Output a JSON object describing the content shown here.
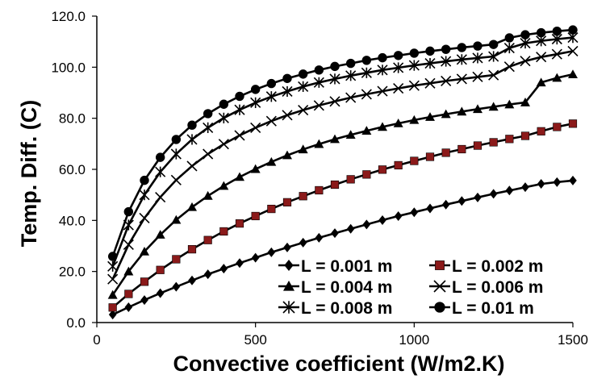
{
  "chart_data": {
    "type": "line",
    "title": "",
    "xlabel": "Convective coefficient (W/m2.K)",
    "ylabel": "Temp. Diff. (C)",
    "xlim": [
      0,
      1500
    ],
    "ylim": [
      0,
      120
    ],
    "xticks": [
      0,
      500,
      1000,
      1500
    ],
    "xtick_labels": [
      "0",
      "500",
      "1000",
      "1500"
    ],
    "yticks": [
      0,
      20,
      40,
      60,
      80,
      100,
      120
    ],
    "ytick_labels": [
      "0.0",
      "20.0",
      "40.0",
      "60.0",
      "80.0",
      "100.0",
      "120.0"
    ],
    "grid": false,
    "legend_position": "bottom-right",
    "x": [
      50,
      100,
      150,
      200,
      250,
      300,
      350,
      400,
      450,
      500,
      550,
      600,
      650,
      700,
      750,
      800,
      850,
      900,
      950,
      1000,
      1050,
      1100,
      1150,
      1200,
      1250,
      1300,
      1350,
      1400,
      1450,
      1500
    ],
    "series": [
      {
        "name": "L = 0.001 m",
        "marker": "diamond",
        "marker_color": "#000000",
        "values": [
          3.1,
          6.0,
          8.8,
          11.5,
          14.0,
          16.5,
          18.9,
          21.1,
          23.3,
          25.4,
          27.5,
          29.4,
          31.3,
          33.2,
          35.0,
          36.7,
          38.4,
          40.1,
          41.7,
          43.2,
          44.7,
          46.2,
          47.6,
          49.0,
          50.4,
          51.7,
          53.0,
          54.3,
          55.0,
          55.6
        ]
      },
      {
        "name": "L = 0.002 m",
        "marker": "square",
        "marker_color": "#8b1a1a",
        "values": [
          5.9,
          11.2,
          16.0,
          20.6,
          24.8,
          28.7,
          32.3,
          35.7,
          38.8,
          41.7,
          44.5,
          47.1,
          49.5,
          51.8,
          54.0,
          56.1,
          58.0,
          59.9,
          61.6,
          63.3,
          64.9,
          66.5,
          67.9,
          69.3,
          70.6,
          71.9,
          73.1,
          74.9,
          76.6,
          77.9
        ]
      },
      {
        "name": "L = 0.004 m",
        "marker": "triangle",
        "marker_color": "#000000",
        "values": [
          10.8,
          20.0,
          27.8,
          34.4,
          40.2,
          45.2,
          49.6,
          53.5,
          57.0,
          60.1,
          62.9,
          65.5,
          67.8,
          69.9,
          71.8,
          73.5,
          75.1,
          76.6,
          78.0,
          79.3,
          80.5,
          81.6,
          82.6,
          83.6,
          84.5,
          85.4,
          86.2,
          94.0,
          95.8,
          97.2
        ]
      },
      {
        "name": "L = 0.006 m",
        "marker": "x",
        "marker_color": "#000000",
        "values": [
          17.0,
          30.5,
          40.9,
          49.1,
          55.8,
          61.3,
          66.0,
          69.9,
          73.3,
          76.3,
          78.9,
          81.2,
          83.2,
          85.0,
          86.6,
          88.1,
          89.4,
          90.6,
          91.7,
          92.8,
          93.7,
          94.6,
          95.4,
          96.2,
          96.9,
          100.2,
          102.4,
          104.0,
          105.1,
          106.3
        ]
      },
      {
        "name": "L = 0.008 m",
        "marker": "asterisk",
        "marker_color": "#000000",
        "values": [
          22.0,
          38.2,
          50.0,
          59.0,
          66.0,
          71.7,
          76.3,
          80.1,
          83.3,
          86.1,
          88.5,
          90.5,
          92.4,
          94.0,
          95.4,
          96.7,
          97.8,
          98.9,
          99.8,
          100.7,
          101.5,
          102.3,
          103.0,
          103.6,
          104.2,
          107.5,
          109.4,
          110.3,
          111.0,
          111.6
        ]
      },
      {
        "name": "L = 0.01 m",
        "marker": "circle",
        "marker_color": "#000000",
        "values": [
          25.9,
          43.4,
          55.7,
          64.7,
          71.7,
          77.3,
          81.8,
          85.5,
          88.6,
          91.3,
          93.6,
          95.6,
          97.3,
          98.9,
          100.3,
          101.5,
          102.7,
          103.7,
          104.6,
          105.5,
          106.3,
          107.0,
          107.7,
          108.3,
          108.9,
          111.5,
          112.7,
          113.5,
          114.1,
          114.6
        ]
      }
    ]
  }
}
